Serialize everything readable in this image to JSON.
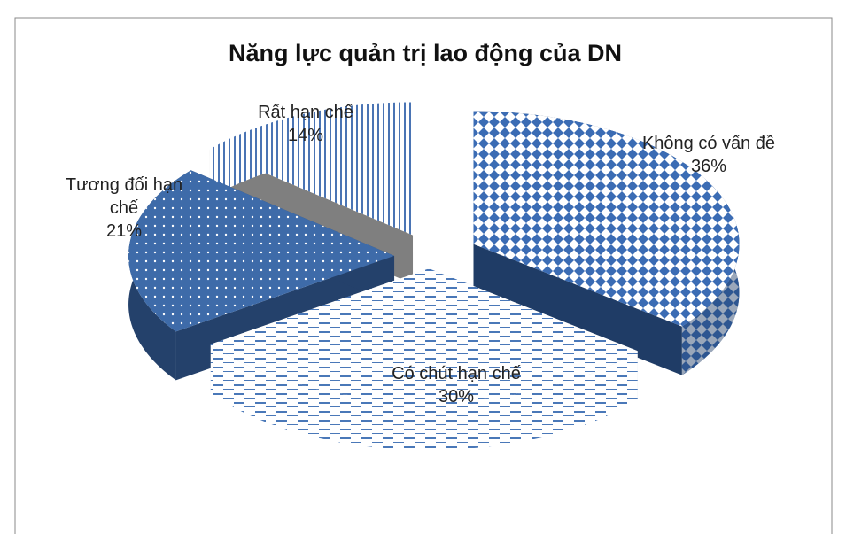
{
  "chart_data": {
    "type": "pie",
    "title": "Năng lực quản trị lao động của DN",
    "categories": [
      "Không có vấn đề",
      "Có chút hạn chế",
      "Tương đối hạn chế",
      "Rất hạn chế"
    ],
    "values": [
      36,
      30,
      21,
      14
    ],
    "value_labels": [
      "36%",
      "30%",
      "21%",
      "14%"
    ],
    "colors": [
      "#3b6cb4",
      "#4a78b8",
      "#3e6ba9",
      "#4a74b4"
    ]
  }
}
